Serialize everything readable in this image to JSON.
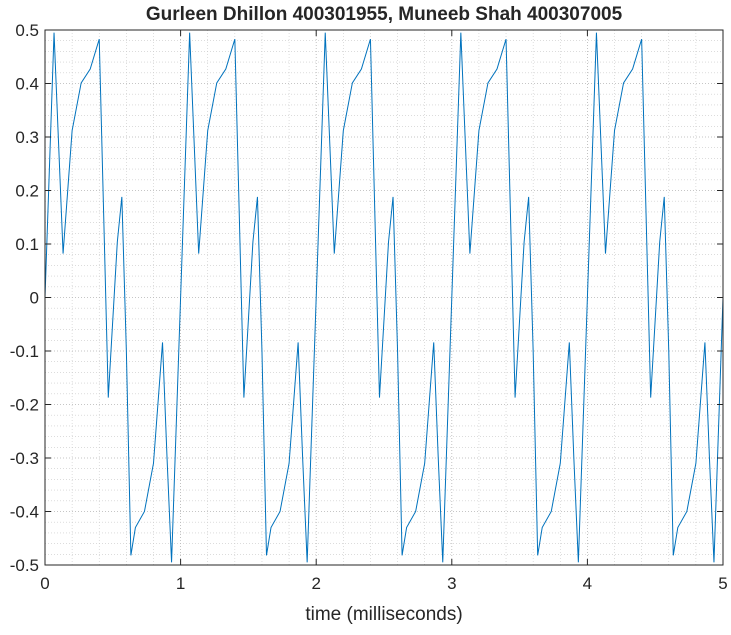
{
  "chart_data": {
    "type": "line",
    "title": "Gurleen Dhillon 400301955, Muneeb Shah 400307005",
    "xlabel": "time (milliseconds)",
    "ylabel": "",
    "xlim": [
      0,
      5
    ],
    "ylim": [
      -0.5,
      0.5
    ],
    "xticks": [
      "0",
      "1",
      "2",
      "3",
      "4",
      "5"
    ],
    "yticks": [
      "0.5",
      "0.4",
      "0.3",
      "0.2",
      "0.1",
      "0",
      "-0.1",
      "-0.2",
      "-0.3",
      "-0.4",
      "-0.5"
    ],
    "grid": true,
    "minor_grid": true,
    "line_color": "#0072bd",
    "series": [
      {
        "x": [
          0,
          0.0667,
          0.1333,
          0.2,
          0.2667,
          0.3333,
          0.4,
          0.4667,
          0.5333,
          0.5667,
          0.6,
          0.6333,
          0.6667,
          0.7333,
          0.8,
          0.8667,
          0.9,
          0.9333,
          1.0
        ],
        "y": [
          0,
          0.495,
          0.082,
          0.312,
          0.401,
          0.427,
          0.483,
          -0.187,
          0.104,
          0.188,
          -0.1,
          -0.482,
          -0.43,
          -0.4,
          -0.31,
          -0.084,
          -0.3,
          -0.495,
          0.0
        ],
        "period": 1.0,
        "t_end": 5.0
      }
    ]
  }
}
